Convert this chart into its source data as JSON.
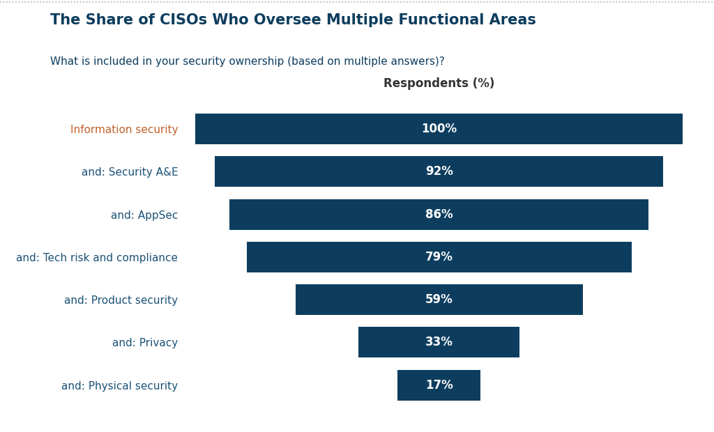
{
  "title": "The Share of CISOs Who Oversee Multiple Functional Areas",
  "subtitle": "What is included in your security ownership (based on multiple answers)?",
  "xlabel": "Respondents (%)",
  "categories": [
    "Information security",
    "and: Security A&E",
    "and: AppSec",
    "and: Tech risk and compliance",
    "and: Product security",
    "and: Privacy",
    "and: Physical security"
  ],
  "values": [
    100,
    92,
    86,
    79,
    59,
    33,
    17
  ],
  "bar_color": "#0d3d5e",
  "title_color": "#0d3d5e",
  "subtitle_color": "#0d3d5e",
  "label_colors": [
    "#c0622b",
    "#1a5276",
    "#1a5276",
    "#1a5276",
    "#1a5276",
    "#1a5276",
    "#1a5276"
  ],
  "bar_label_color": "#ffffff",
  "background_color": "#ffffff",
  "top_border_color": "#aaaaaa",
  "figsize": [
    10.24,
    6.2
  ],
  "dpi": 100
}
